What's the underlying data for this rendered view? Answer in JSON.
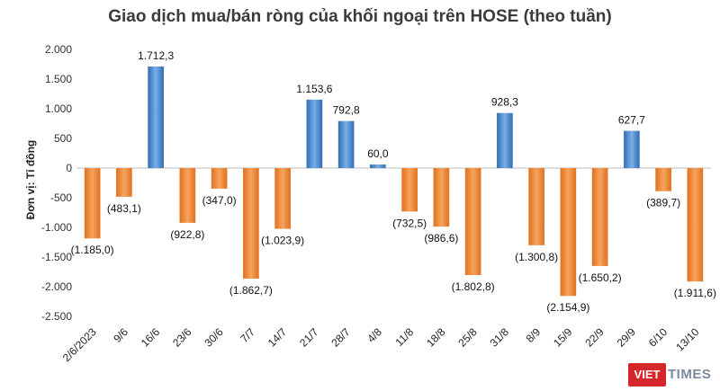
{
  "chart_data": {
    "type": "bar",
    "title": "Giao dịch mua/bán ròng của khối ngoại trên HOSE (theo tuần)",
    "ylabel": "Đơn vị: Tỉ đồng",
    "xlabel": "",
    "ylim": [
      -2500,
      2000
    ],
    "yticks": [
      2000,
      1500,
      1000,
      500,
      0,
      -500,
      -1000,
      -1500,
      -2000,
      -2500
    ],
    "ytick_labels": [
      "2.000",
      "1.500",
      "1.000",
      "500",
      "0",
      "-500",
      "-1.000",
      "-1.500",
      "-2.000",
      "-2.500"
    ],
    "categories": [
      "2/6/2023",
      "9/6",
      "16/6",
      "23/6",
      "30/6",
      "7/7",
      "14/7",
      "21/7",
      "28/7",
      "4/8",
      "11/8",
      "18/8",
      "25/8",
      "31/8",
      "8/9",
      "15/9",
      "22/9",
      "29/9",
      "6/10",
      "13/10"
    ],
    "values": [
      -1185.0,
      -483.1,
      1712.3,
      -922.8,
      -347.0,
      -1862.7,
      -1023.9,
      1153.6,
      792.8,
      60.0,
      -732.5,
      -986.6,
      -1802.8,
      928.3,
      -1300.8,
      -2154.9,
      -1650.2,
      627.7,
      -389.7,
      -1911.6
    ],
    "labels": [
      "(1.185,0)",
      "(483,1)",
      "1.712,3",
      "(922,8)",
      "(347,0)",
      "(1.862,7)",
      "(1.023,9)",
      "1.153,6",
      "792,8",
      "60,0",
      "(732,5)",
      "(986,6)",
      "(1.802,8)",
      "928,3",
      "(1.300,8)",
      "(2.154,9)",
      "(1.650,2)",
      "627,7",
      "(389,7)",
      "(1.911,6)"
    ],
    "positive_color": "#4a86c8",
    "negative_color": "#f08a3a",
    "grid": false,
    "legend": "none"
  },
  "watermark": {
    "part1": "VIET",
    "part2": "TIMES"
  }
}
